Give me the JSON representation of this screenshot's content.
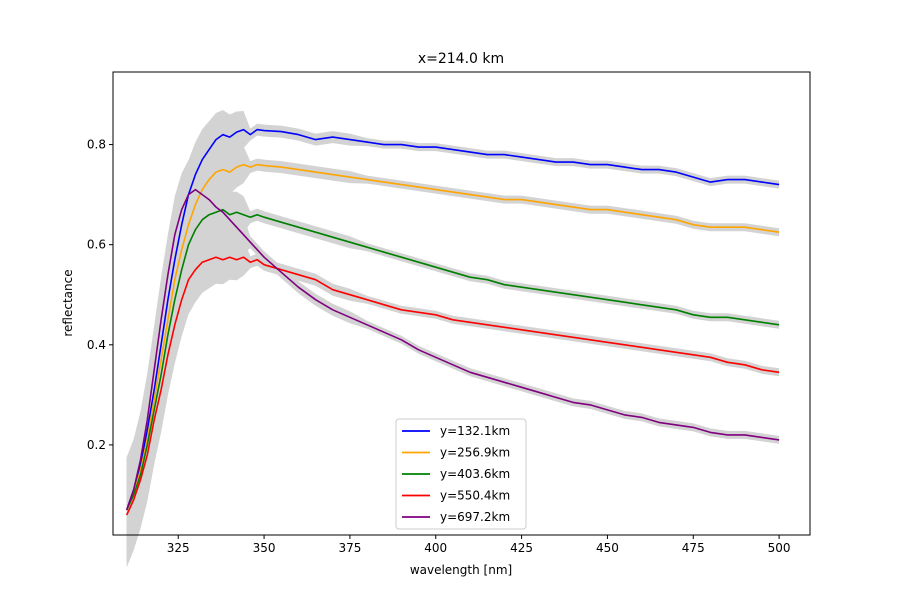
{
  "chart_data": {
    "type": "line",
    "title": "x=214.0 km",
    "xlabel": "wavelength [nm]",
    "ylabel": "reflectance",
    "xlim": [
      306,
      509
    ],
    "ylim": [
      0.02,
      0.945
    ],
    "xticks": [
      325,
      350,
      375,
      400,
      425,
      450,
      475,
      500
    ],
    "yticks": [
      0.2,
      0.4,
      0.6,
      0.8
    ],
    "grid": false,
    "legend": "lower-center",
    "band_color": "#d3d3d3",
    "series": [
      {
        "name": "y=132.1km",
        "color": "#0000ff",
        "x": [
          310,
          312,
          314,
          316,
          318,
          320,
          322,
          324,
          326,
          328,
          330,
          332,
          334,
          336,
          338,
          340,
          342,
          344,
          346,
          348,
          350,
          355,
          360,
          365,
          370,
          375,
          380,
          385,
          390,
          395,
          400,
          405,
          410,
          415,
          420,
          425,
          430,
          435,
          440,
          445,
          450,
          455,
          460,
          465,
          470,
          475,
          480,
          485,
          490,
          495,
          500
        ],
        "y": [
          0.07,
          0.11,
          0.16,
          0.23,
          0.31,
          0.4,
          0.49,
          0.57,
          0.64,
          0.7,
          0.74,
          0.77,
          0.79,
          0.81,
          0.82,
          0.815,
          0.825,
          0.83,
          0.82,
          0.83,
          0.828,
          0.826,
          0.82,
          0.81,
          0.815,
          0.81,
          0.805,
          0.8,
          0.8,
          0.795,
          0.795,
          0.79,
          0.785,
          0.78,
          0.78,
          0.775,
          0.77,
          0.765,
          0.765,
          0.76,
          0.76,
          0.755,
          0.75,
          0.75,
          0.745,
          0.735,
          0.725,
          0.73,
          0.73,
          0.725,
          0.72
        ]
      },
      {
        "name": "y=256.9km",
        "color": "#ffa500",
        "x": [
          310,
          312,
          314,
          316,
          318,
          320,
          322,
          324,
          326,
          328,
          330,
          332,
          334,
          336,
          338,
          340,
          342,
          344,
          346,
          348,
          350,
          355,
          360,
          365,
          370,
          375,
          380,
          385,
          390,
          395,
          400,
          405,
          410,
          415,
          420,
          425,
          430,
          435,
          440,
          445,
          450,
          455,
          460,
          465,
          470,
          475,
          480,
          485,
          490,
          495,
          500
        ],
        "y": [
          0.07,
          0.1,
          0.15,
          0.21,
          0.29,
          0.37,
          0.45,
          0.53,
          0.59,
          0.64,
          0.68,
          0.71,
          0.73,
          0.745,
          0.75,
          0.745,
          0.755,
          0.76,
          0.755,
          0.76,
          0.758,
          0.755,
          0.75,
          0.745,
          0.74,
          0.735,
          0.73,
          0.725,
          0.72,
          0.715,
          0.71,
          0.705,
          0.7,
          0.695,
          0.69,
          0.69,
          0.685,
          0.68,
          0.675,
          0.67,
          0.67,
          0.665,
          0.66,
          0.655,
          0.65,
          0.64,
          0.635,
          0.635,
          0.635,
          0.63,
          0.625
        ]
      },
      {
        "name": "y=403.6km",
        "color": "#008000",
        "x": [
          310,
          312,
          314,
          316,
          318,
          320,
          322,
          324,
          326,
          328,
          330,
          332,
          334,
          336,
          338,
          340,
          342,
          344,
          346,
          348,
          350,
          355,
          360,
          365,
          370,
          375,
          380,
          385,
          390,
          395,
          400,
          405,
          410,
          415,
          420,
          425,
          430,
          435,
          440,
          445,
          450,
          455,
          460,
          465,
          470,
          475,
          480,
          485,
          490,
          495,
          500
        ],
        "y": [
          0.07,
          0.1,
          0.14,
          0.2,
          0.27,
          0.34,
          0.42,
          0.49,
          0.55,
          0.6,
          0.63,
          0.65,
          0.66,
          0.665,
          0.67,
          0.66,
          0.665,
          0.66,
          0.655,
          0.66,
          0.655,
          0.645,
          0.635,
          0.625,
          0.615,
          0.605,
          0.595,
          0.585,
          0.575,
          0.565,
          0.555,
          0.545,
          0.535,
          0.53,
          0.52,
          0.515,
          0.51,
          0.505,
          0.5,
          0.495,
          0.49,
          0.485,
          0.48,
          0.475,
          0.47,
          0.46,
          0.455,
          0.455,
          0.45,
          0.445,
          0.44
        ]
      },
      {
        "name": "y=550.4km",
        "color": "#ff0000",
        "x": [
          310,
          312,
          314,
          316,
          318,
          320,
          322,
          324,
          326,
          328,
          330,
          332,
          334,
          336,
          338,
          340,
          342,
          344,
          346,
          348,
          350,
          355,
          360,
          365,
          370,
          375,
          380,
          385,
          390,
          395,
          400,
          405,
          410,
          415,
          420,
          425,
          430,
          435,
          440,
          445,
          450,
          455,
          460,
          465,
          470,
          475,
          480,
          485,
          490,
          495,
          500
        ],
        "y": [
          0.06,
          0.09,
          0.13,
          0.18,
          0.25,
          0.31,
          0.38,
          0.44,
          0.49,
          0.53,
          0.55,
          0.565,
          0.57,
          0.575,
          0.57,
          0.575,
          0.57,
          0.575,
          0.565,
          0.57,
          0.56,
          0.55,
          0.54,
          0.53,
          0.51,
          0.5,
          0.49,
          0.48,
          0.47,
          0.465,
          0.46,
          0.45,
          0.445,
          0.44,
          0.435,
          0.43,
          0.425,
          0.42,
          0.415,
          0.41,
          0.405,
          0.4,
          0.395,
          0.39,
          0.385,
          0.38,
          0.375,
          0.365,
          0.36,
          0.35,
          0.345
        ]
      },
      {
        "name": "y=697.2km",
        "color": "#800080",
        "x": [
          310,
          312,
          314,
          316,
          318,
          320,
          322,
          324,
          326,
          328,
          330,
          332,
          334,
          336,
          338,
          340,
          342,
          344,
          346,
          348,
          350,
          355,
          360,
          365,
          370,
          375,
          380,
          385,
          390,
          395,
          400,
          405,
          410,
          415,
          420,
          425,
          430,
          435,
          440,
          445,
          450,
          455,
          460,
          465,
          470,
          475,
          480,
          485,
          490,
          495,
          500
        ],
        "y": [
          0.07,
          0.11,
          0.17,
          0.25,
          0.35,
          0.45,
          0.54,
          0.62,
          0.67,
          0.7,
          0.71,
          0.7,
          0.69,
          0.675,
          0.665,
          0.65,
          0.635,
          0.62,
          0.605,
          0.59,
          0.575,
          0.545,
          0.515,
          0.49,
          0.47,
          0.455,
          0.44,
          0.425,
          0.41,
          0.39,
          0.375,
          0.36,
          0.345,
          0.335,
          0.325,
          0.315,
          0.305,
          0.295,
          0.285,
          0.28,
          0.27,
          0.26,
          0.255,
          0.245,
          0.24,
          0.235,
          0.225,
          0.22,
          0.22,
          0.215,
          0.21
        ]
      }
    ]
  }
}
